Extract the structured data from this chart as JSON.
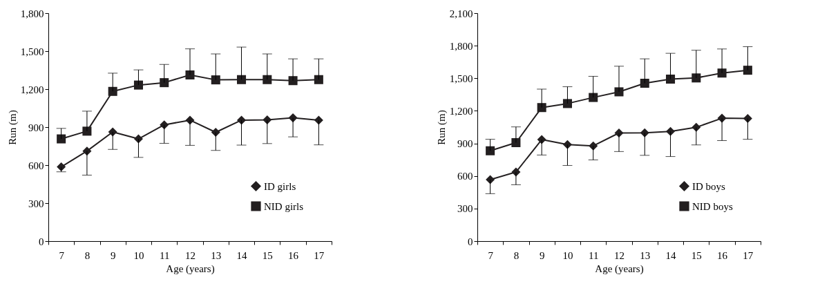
{
  "chart_data": [
    {
      "type": "line",
      "xlabel": "Age (years)",
      "ylabel": "Run (m)",
      "categories": [
        "7",
        "8",
        "9",
        "10",
        "11",
        "12",
        "13",
        "14",
        "15",
        "16",
        "17"
      ],
      "ylim": [
        0,
        1800
      ],
      "yticks": [
        0,
        300,
        600,
        900,
        {
          "value": 1200,
          "label": "1,200"
        },
        {
          "value": 1500,
          "label": "1,500"
        },
        {
          "value": 1800,
          "label": "1,800"
        }
      ],
      "legend": "bottom right",
      "grid": false,
      "line_style": "solid",
      "series": [
        {
          "name": "ID girls",
          "color": "#231f20",
          "marker": "diamond",
          "values": [
            586,
            711,
            862,
            807,
            918,
            955,
            859,
            955,
            957,
            973,
            955
          ],
          "errors": [
            [
              547,
              586
            ],
            [
              521,
              711
            ],
            [
              724,
              862
            ],
            [
              661,
              807
            ],
            [
              772,
              918
            ],
            [
              756,
              955
            ],
            [
              716,
              859
            ],
            [
              758,
              955
            ],
            [
              770,
              957
            ],
            [
              823,
              973
            ],
            [
              760,
              955
            ]
          ]
        },
        {
          "name": "NID girls",
          "color": "#231f20",
          "marker": "square",
          "values": [
            807,
            868,
            1182,
            1232,
            1251,
            1312,
            1273,
            1275,
            1275,
            1267,
            1275
          ],
          "errors": [
            [
              807,
              890
            ],
            [
              868,
              1026
            ],
            [
              1182,
              1326
            ],
            [
              1232,
              1352
            ],
            [
              1251,
              1395
            ],
            [
              1312,
              1518
            ],
            [
              1273,
              1478
            ],
            [
              1275,
              1532
            ],
            [
              1275,
              1478
            ],
            [
              1267,
              1439
            ],
            [
              1275,
              1439
            ]
          ]
        }
      ]
    },
    {
      "type": "line",
      "xlabel": "Age (years)",
      "ylabel": "Run (m)",
      "categories": [
        "7",
        "8",
        "9",
        "10",
        "11",
        "12",
        "13",
        "14",
        "15",
        "16",
        "17"
      ],
      "ylim": [
        0,
        2100
      ],
      "yticks": [
        0,
        300,
        600,
        900,
        {
          "value": 1200,
          "label": "1,200"
        },
        {
          "value": 1500,
          "label": "1,500"
        },
        {
          "value": 1800,
          "label": "1,800"
        },
        {
          "value": 2100,
          "label": "2,100"
        }
      ],
      "legend": "bottom right",
      "grid": false,
      "line_style": "solid",
      "series": [
        {
          "name": "ID boys",
          "color": "#231f20",
          "marker": "diamond",
          "values": [
            566,
            636,
            935,
            889,
            877,
            996,
            998,
            1010,
            1048,
            1132,
            1130
          ],
          "errors": [
            [
              437,
              566
            ],
            [
              519,
              636
            ],
            [
              793,
              935
            ],
            [
              697,
              889
            ],
            [
              748,
              877
            ],
            [
              825,
              996
            ],
            [
              790,
              998
            ],
            [
              779,
              1010
            ],
            [
              886,
              1048
            ],
            [
              926,
              1132
            ],
            [
              938,
              1130
            ]
          ]
        },
        {
          "name": "NID boys",
          "color": "#231f20",
          "marker": "square",
          "values": [
            832,
            907,
            1230,
            1267,
            1323,
            1375,
            1454,
            1492,
            1503,
            1548,
            1574
          ],
          "errors": [
            [
              832,
              938
            ],
            [
              907,
              1052
            ],
            [
              1230,
              1400
            ],
            [
              1267,
              1422
            ],
            [
              1323,
              1518
            ],
            [
              1375,
              1611
            ],
            [
              1454,
              1679
            ],
            [
              1492,
              1730
            ],
            [
              1503,
              1758
            ],
            [
              1548,
              1770
            ],
            [
              1574,
              1791
            ]
          ]
        }
      ]
    }
  ]
}
